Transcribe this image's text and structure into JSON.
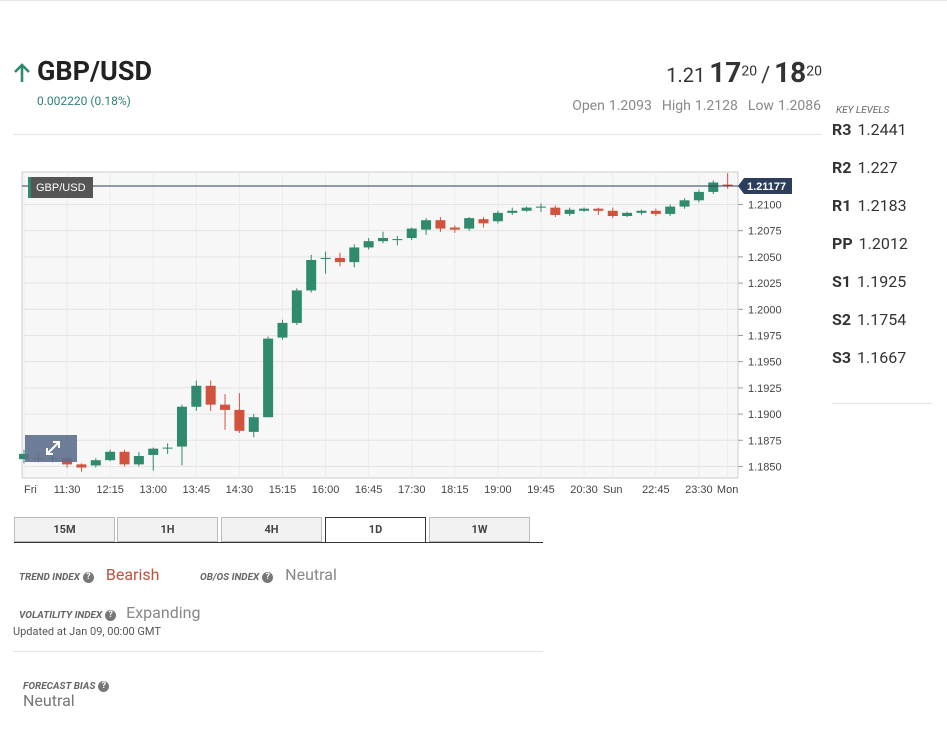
{
  "header": {
    "title": "GBP/USD",
    "change": "0.002220 (0.18%)",
    "bid": {
      "big": "1.21",
      "pips": "17",
      "fraction": "20"
    },
    "separator": "/",
    "ask": {
      "pips": "18",
      "fraction": "20"
    },
    "stats": [
      {
        "label": "Open",
        "value": 1.2093
      },
      {
        "label": "High",
        "value": 1.2128
      },
      {
        "label": "Low",
        "value": 1.2086
      }
    ]
  },
  "key_levels": {
    "title": "KEY LEVELS",
    "levels": [
      {
        "label": "R3",
        "value": 1.2441
      },
      {
        "label": "R2",
        "value": 1.227
      },
      {
        "label": "R1",
        "value": 1.2183
      },
      {
        "label": "PP",
        "value": 1.2012
      },
      {
        "label": "S1",
        "value": 1.1925
      },
      {
        "label": "S2",
        "value": 1.1754
      },
      {
        "label": "S3",
        "value": 1.1667
      }
    ]
  },
  "chart_data": {
    "type": "candlestick",
    "symbol": "GBP/USD",
    "current_price": 1.21177,
    "categories": [
      "Fri",
      null,
      null,
      "11:30",
      null,
      null,
      "12:15",
      null,
      null,
      "13:00",
      null,
      null,
      "13:45",
      null,
      null,
      "14:30",
      null,
      null,
      "15:15",
      null,
      null,
      "16:00",
      null,
      null,
      "16:45",
      null,
      null,
      "17:30",
      null,
      null,
      "18:15",
      null,
      null,
      "19:00",
      null,
      null,
      "19:45",
      null,
      null,
      "20:30",
      null,
      "Sun",
      null,
      null,
      "22:45",
      null,
      null,
      "23:30",
      null,
      "Mon"
    ],
    "open": [
      1.1857,
      1.1858,
      1.1857,
      1.1858,
      1.1852,
      1.1851,
      1.1856,
      1.1864,
      1.1852,
      1.1861,
      1.1868,
      1.1869,
      1.1907,
      1.1927,
      1.1909,
      1.1904,
      1.1883,
      1.1897,
      1.1973,
      1.1987,
      1.2018,
      1.2048,
      1.2049,
      1.2045,
      1.2059,
      1.2065,
      1.2066,
      1.2068,
      1.2076,
      1.2085,
      1.2078,
      1.2077,
      1.2086,
      1.2084,
      1.2092,
      1.2094,
      1.2097,
      1.2097,
      1.2091,
      1.2094,
      1.2096,
      1.2094,
      1.2089,
      1.2092,
      1.2094,
      1.2091,
      1.2098,
      1.2104,
      1.2112,
      1.2119
    ],
    "high": [
      1.1866,
      1.1862,
      1.1861,
      1.186,
      1.1853,
      1.1858,
      1.1866,
      1.1866,
      1.1864,
      1.1868,
      1.1872,
      1.1909,
      1.1932,
      1.1932,
      1.1919,
      1.192,
      1.19,
      1.1974,
      1.199,
      1.202,
      1.2052,
      1.2055,
      1.2054,
      1.2062,
      1.2068,
      1.2074,
      1.207,
      1.2078,
      1.2087,
      1.2088,
      1.208,
      1.2088,
      1.2088,
      1.2094,
      1.2097,
      1.2098,
      1.2101,
      1.2099,
      1.2097,
      1.2097,
      1.2097,
      1.2097,
      1.2093,
      1.2095,
      1.2096,
      1.21,
      1.2106,
      1.2114,
      1.2123,
      1.213
    ],
    "low": [
      1.1853,
      1.1854,
      1.1854,
      1.1849,
      1.1845,
      1.1849,
      1.1855,
      1.185,
      1.185,
      1.1846,
      1.1862,
      1.1851,
      1.1903,
      1.1903,
      1.1885,
      1.1882,
      1.1878,
      1.1897,
      1.1971,
      1.1985,
      1.2016,
      1.2034,
      1.2041,
      1.204,
      1.2057,
      1.2063,
      1.2061,
      1.2066,
      1.2071,
      1.2074,
      1.2073,
      1.2075,
      1.2078,
      1.2082,
      1.209,
      1.2093,
      1.2093,
      1.2088,
      1.2089,
      1.2093,
      1.209,
      1.2087,
      1.2088,
      1.209,
      1.2089,
      1.2089,
      1.2096,
      1.2102,
      1.211,
      1.2115
    ],
    "close": [
      1.1862,
      1.1857,
      1.1858,
      1.1852,
      1.1849,
      1.1856,
      1.1864,
      1.1852,
      1.186,
      1.1867,
      1.1868,
      1.1907,
      1.1927,
      1.1909,
      1.1904,
      1.1884,
      1.1897,
      1.1972,
      1.1987,
      1.2018,
      1.2047,
      1.2049,
      1.2045,
      1.2059,
      1.2065,
      1.2068,
      1.2067,
      1.2077,
      1.2085,
      1.2077,
      1.2076,
      1.2087,
      1.2082,
      1.2092,
      1.2094,
      1.2097,
      1.2098,
      1.209,
      1.2095,
      1.2096,
      1.2094,
      1.2089,
      1.2092,
      1.2094,
      1.2091,
      1.2098,
      1.2104,
      1.2112,
      1.2121,
      1.2118
    ],
    "up_color": "#2f8a6e",
    "down_color": "#d1533e",
    "ylim": [
      1.1839,
      1.2131
    ],
    "yticks": [
      {
        "value": 1.185,
        "label": "1.1850"
      },
      1.1875,
      {
        "value": 1.19,
        "label": "1.1900"
      },
      1.1925,
      {
        "value": 1.195,
        "label": "1.1950"
      },
      1.1975,
      {
        "value": 1.2,
        "label": "1.2000"
      },
      1.2025,
      {
        "value": 1.205,
        "label": "1.2050"
      },
      1.2075,
      {
        "value": 1.21,
        "label": "1.2100"
      }
    ],
    "grid": true
  },
  "tabs": {
    "items": [
      "15M",
      "1H",
      "4H",
      "1D",
      "1W"
    ],
    "active": 3
  },
  "indices": [
    {
      "label": "TREND INDEX",
      "value": "Bearish"
    },
    {
      "label": "OB/OS INDEX",
      "value": "Neutral"
    },
    {
      "label": "VOLATILITY INDEX",
      "value": "Expanding"
    }
  ],
  "updated": "Updated at Jan 09, 00:00 GMT",
  "forecast": {
    "label": "FORECAST BIAS",
    "value": "Neutral"
  }
}
